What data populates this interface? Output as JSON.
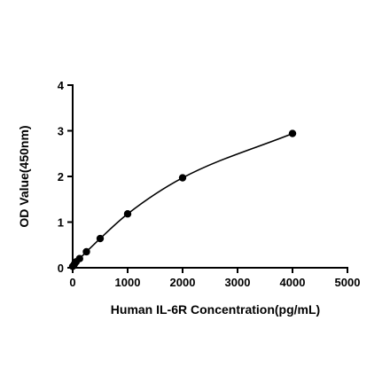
{
  "chart_data": {
    "type": "scatter",
    "xlabel": "Human IL-6R Concentration(pg/mL)",
    "ylabel": "OD Value(450nm)",
    "xlim": [
      0,
      5000
    ],
    "ylim": [
      0,
      4
    ],
    "xticks": [
      0,
      1000,
      2000,
      3000,
      4000,
      5000
    ],
    "yticks": [
      0,
      1,
      2,
      3,
      4
    ],
    "grid": false,
    "legend": "none",
    "fit_curve": true,
    "series": [
      {
        "x": [
          0,
          31.25,
          62.5,
          125,
          250,
          500,
          1000,
          2000,
          4000
        ],
        "y": [
          0.03,
          0.08,
          0.13,
          0.2,
          0.35,
          0.64,
          1.18,
          1.97,
          2.94
        ]
      }
    ]
  }
}
